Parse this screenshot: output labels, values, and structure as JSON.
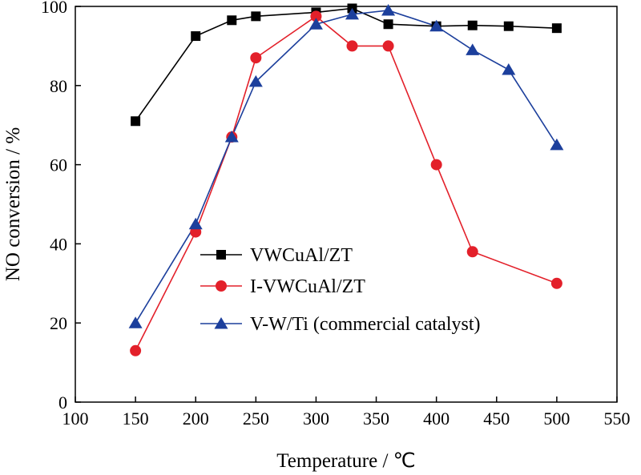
{
  "chart_data": {
    "type": "line",
    "xlabel": "Temperature / ℃",
    "ylabel": "NO conversion / %",
    "xlim": [
      100,
      550
    ],
    "ylim": [
      0,
      100
    ],
    "xticks": [
      "100",
      "150",
      "200",
      "250",
      "300",
      "350",
      "400",
      "450",
      "500",
      "550"
    ],
    "yticks": [
      "0",
      "20",
      "40",
      "60",
      "80",
      "100"
    ],
    "legend_position": "lower-right",
    "grid": false,
    "series": [
      {
        "name": "VWCuAl/ZT",
        "color": "#000000",
        "marker": "square",
        "x": [
          150,
          200,
          230,
          250,
          300,
          330,
          360,
          400,
          430,
          460,
          500
        ],
        "y": [
          71,
          92.5,
          96.5,
          97.5,
          98.5,
          99.5,
          95.5,
          95,
          95.2,
          95,
          94.5
        ]
      },
      {
        "name": "I-VWCuAl/ZT",
        "color": "#e3202a",
        "marker": "circle",
        "x": [
          150,
          200,
          230,
          250,
          300,
          330,
          360,
          400,
          430,
          500
        ],
        "y": [
          13,
          43,
          67,
          87,
          97.5,
          90,
          90,
          60,
          38,
          30
        ]
      },
      {
        "name": "V-W/Ti (commercial catalyst)",
        "color": "#1c3f9c",
        "marker": "triangle",
        "x": [
          150,
          200,
          230,
          250,
          300,
          330,
          360,
          400,
          430,
          460,
          500
        ],
        "y": [
          20,
          45,
          67,
          81,
          95.5,
          98,
          99,
          95,
          89,
          84,
          65
        ]
      }
    ]
  }
}
